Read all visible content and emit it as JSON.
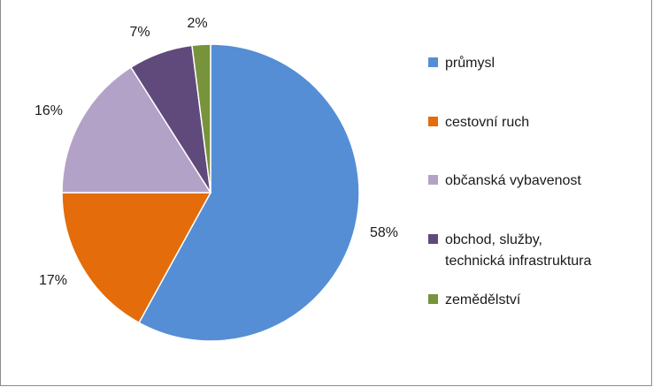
{
  "chart_data": {
    "type": "pie",
    "title": "",
    "categories": [
      "průmysl",
      "cestovní ruch",
      "občanská vybavenost",
      "obchod, služby, technická infrastruktura",
      "zemědělství"
    ],
    "legend_labels": [
      "průmysl",
      "cestovní ruch",
      "občanská vybavenost",
      "obchod, služby,\ntechnická infrastruktura",
      "zemědělství"
    ],
    "values": [
      58,
      17,
      16,
      7,
      2
    ],
    "data_labels": [
      "58%",
      "17%",
      "16%",
      "7%",
      "2%"
    ],
    "colors": [
      "#558ed5",
      "#e46c0a",
      "#b3a2c7",
      "#604a7b",
      "#77933c"
    ],
    "legend_position": "right"
  }
}
